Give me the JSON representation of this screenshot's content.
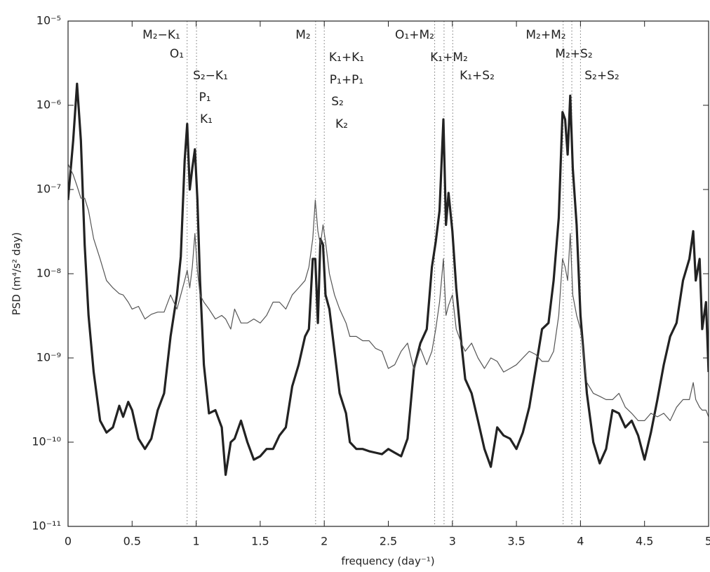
{
  "chart_data": {
    "type": "line",
    "xlabel": "frequency (day⁻¹)",
    "ylabel": "PSD (m⁴/s² day)",
    "yscale": "log",
    "xlim": [
      0,
      5
    ],
    "ylim": [
      1e-11,
      1e-05
    ],
    "xticks": [
      0,
      0.5,
      1,
      1.5,
      2,
      2.5,
      3,
      3.5,
      4,
      4.5,
      5
    ],
    "yticks": [
      {
        "value": 1e-11,
        "label": "10⁻¹¹"
      },
      {
        "value": 1e-10,
        "label": "10⁻¹⁰"
      },
      {
        "value": 1e-09,
        "label": "10⁻⁹"
      },
      {
        "value": 1e-08,
        "label": "10⁻⁸"
      },
      {
        "value": 1e-07,
        "label": "10⁻⁷"
      },
      {
        "value": 1e-06,
        "label": "10⁻⁶"
      },
      {
        "value": 1e-05,
        "label": "10⁻⁵"
      }
    ],
    "tidal_frequencies": [
      0.9295,
      1.0027,
      1.9323,
      2.0,
      2.8618,
      2.935,
      3.0027,
      3.8645,
      3.9323,
      4.0
    ],
    "annotations": [
      "M₂−K₁",
      "O₁",
      "S₂−K₁",
      "P₁",
      "K₁",
      "M₂",
      "K₁+K₁",
      "P₁+P₁",
      "S₂",
      "K₂",
      "O₁+M₂",
      "K₁+M₂",
      "K₁+S₂",
      "M₂+M₂",
      "M₂+S₂",
      "S₂+S₂"
    ],
    "x": [
      0.0,
      0.04,
      0.07,
      0.1,
      0.13,
      0.16,
      0.2,
      0.25,
      0.3,
      0.35,
      0.4,
      0.43,
      0.47,
      0.5,
      0.55,
      0.6,
      0.65,
      0.7,
      0.75,
      0.8,
      0.85,
      0.88,
      0.91,
      0.93,
      0.95,
      0.97,
      0.99,
      1.01,
      1.03,
      1.06,
      1.1,
      1.15,
      1.2,
      1.23,
      1.27,
      1.3,
      1.35,
      1.4,
      1.45,
      1.5,
      1.55,
      1.6,
      1.65,
      1.7,
      1.75,
      1.8,
      1.85,
      1.88,
      1.91,
      1.93,
      1.95,
      1.97,
      1.99,
      2.01,
      2.04,
      2.08,
      2.12,
      2.17,
      2.2,
      2.25,
      2.3,
      2.35,
      2.4,
      2.45,
      2.5,
      2.55,
      2.6,
      2.65,
      2.7,
      2.75,
      2.8,
      2.84,
      2.87,
      2.9,
      2.93,
      2.95,
      2.97,
      3.0,
      3.03,
      3.07,
      3.1,
      3.15,
      3.2,
      3.25,
      3.3,
      3.35,
      3.4,
      3.45,
      3.5,
      3.55,
      3.6,
      3.65,
      3.7,
      3.75,
      3.79,
      3.83,
      3.86,
      3.88,
      3.9,
      3.92,
      3.94,
      3.97,
      4.0,
      4.05,
      4.1,
      4.15,
      4.2,
      4.25,
      4.3,
      4.35,
      4.4,
      4.45,
      4.5,
      4.55,
      4.6,
      4.65,
      4.7,
      4.75,
      4.8,
      4.85,
      4.88,
      4.9,
      4.93,
      4.95,
      4.98,
      5.0
    ],
    "series": [
      {
        "color": "#222222",
        "values": [
          7.5e-08,
          3.8e-07,
          1.8e-06,
          3.8e-07,
          2.2e-08,
          3.2e-09,
          6.8e-10,
          1.8e-10,
          1.3e-10,
          1.5e-10,
          2.7e-10,
          2e-10,
          3e-10,
          2.4e-10,
          1.1e-10,
          8.3e-11,
          1.1e-10,
          2.4e-10,
          3.8e-10,
          1.8e-09,
          5.6e-09,
          1.6e-08,
          2.2e-07,
          6e-07,
          1e-07,
          1.8e-07,
          3e-07,
          7.5e-08,
          8.3e-09,
          8.3e-10,
          2.2e-10,
          2.4e-10,
          1.5e-10,
          4.1e-11,
          1e-10,
          1.1e-10,
          1.8e-10,
          1e-10,
          6.2e-11,
          6.8e-11,
          8.3e-11,
          8.3e-11,
          1.2e-10,
          1.5e-10,
          4.6e-10,
          8.3e-10,
          1.8e-09,
          2.2e-09,
          1.5e-08,
          1.5e-08,
          2.6e-09,
          2.6e-08,
          2.2e-08,
          5.6e-09,
          3.8e-09,
          1.2e-09,
          3.8e-10,
          2.2e-10,
          1e-10,
          8.3e-11,
          8.3e-11,
          7.8e-11,
          7.5e-11,
          7.2e-11,
          8.3e-11,
          7.5e-11,
          6.8e-11,
          1.1e-10,
          7.5e-10,
          1.5e-09,
          2.2e-09,
          1.2e-08,
          2.4e-08,
          5.6e-08,
          6.8e-07,
          3.8e-08,
          9.1e-08,
          3.2e-08,
          6.8e-09,
          1.5e-09,
          5.6e-10,
          3.8e-10,
          1.8e-10,
          8.3e-11,
          5.1e-11,
          1.5e-10,
          1.2e-10,
          1.1e-10,
          8.3e-11,
          1.3e-10,
          2.6e-10,
          7.5e-10,
          2.2e-09,
          2.6e-09,
          8.3e-09,
          4.6e-08,
          8.3e-07,
          6.8e-07,
          2.6e-07,
          1.3e-06,
          1.8e-07,
          3.8e-08,
          3.2e-09,
          3.8e-10,
          1e-10,
          5.6e-11,
          8.3e-11,
          2.4e-10,
          2.2e-10,
          1.5e-10,
          1.8e-10,
          1.2e-10,
          6.2e-11,
          1.3e-10,
          3.2e-10,
          8.3e-10,
          1.8e-09,
          2.6e-09,
          8.3e-09,
          1.5e-08,
          3.2e-08,
          8.3e-09,
          1.5e-08,
          2.2e-09,
          4.6e-09,
          6.8e-10
        ]
      },
      {
        "color": "#555555",
        "values": [
          2e-07,
          1.5e-07,
          1.1e-07,
          7.9e-08,
          7.9e-08,
          5.6e-08,
          2.6e-08,
          1.5e-08,
          8.3e-09,
          6.8e-09,
          5.8e-09,
          5.6e-09,
          4.6e-09,
          3.8e-09,
          4.1e-09,
          2.9e-09,
          3.3e-09,
          3.5e-09,
          3.5e-09,
          5.6e-09,
          3.8e-09,
          5.6e-09,
          8.3e-09,
          1.1e-08,
          6.8e-09,
          1.2e-08,
          3e-08,
          1.1e-08,
          5.6e-09,
          4.6e-09,
          3.8e-09,
          2.9e-09,
          3.2e-09,
          2.9e-09,
          2.2e-09,
          3.8e-09,
          2.6e-09,
          2.6e-09,
          2.9e-09,
          2.6e-09,
          3.2e-09,
          4.6e-09,
          4.6e-09,
          3.8e-09,
          5.6e-09,
          6.8e-09,
          8.3e-09,
          1.2e-08,
          2.6e-08,
          7.5e-08,
          3.2e-08,
          2.2e-08,
          3.8e-08,
          2.4e-08,
          1e-08,
          5.6e-09,
          3.8e-09,
          2.6e-09,
          1.8e-09,
          1.8e-09,
          1.6e-09,
          1.6e-09,
          1.3e-09,
          1.2e-09,
          7.5e-10,
          8.3e-10,
          1.2e-09,
          1.5e-09,
          7.3e-10,
          1.3e-09,
          8.3e-10,
          1.2e-09,
          2.2e-09,
          4.6e-09,
          1.5e-08,
          3.2e-09,
          4.2e-09,
          5.6e-09,
          2.2e-09,
          1.5e-09,
          1.2e-09,
          1.5e-09,
          1e-09,
          7.5e-10,
          1e-09,
          9.1e-10,
          6.8e-10,
          7.5e-10,
          8.3e-10,
          1e-09,
          1.2e-09,
          1.1e-09,
          9.1e-10,
          9.1e-10,
          1.2e-09,
          3.2e-09,
          1.5e-08,
          1.2e-08,
          8.3e-09,
          3e-08,
          5.6e-09,
          3.2e-09,
          2.2e-09,
          5.1e-10,
          3.8e-10,
          3.5e-10,
          3.2e-10,
          3.2e-10,
          3.8e-10,
          2.6e-10,
          2.2e-10,
          1.8e-10,
          1.8e-10,
          2.2e-10,
          2e-10,
          2.2e-10,
          1.8e-10,
          2.6e-10,
          3.2e-10,
          3.2e-10,
          5.1e-10,
          3.2e-10,
          2.6e-10,
          2.4e-10,
          2.4e-10,
          2e-10
        ]
      }
    ]
  }
}
